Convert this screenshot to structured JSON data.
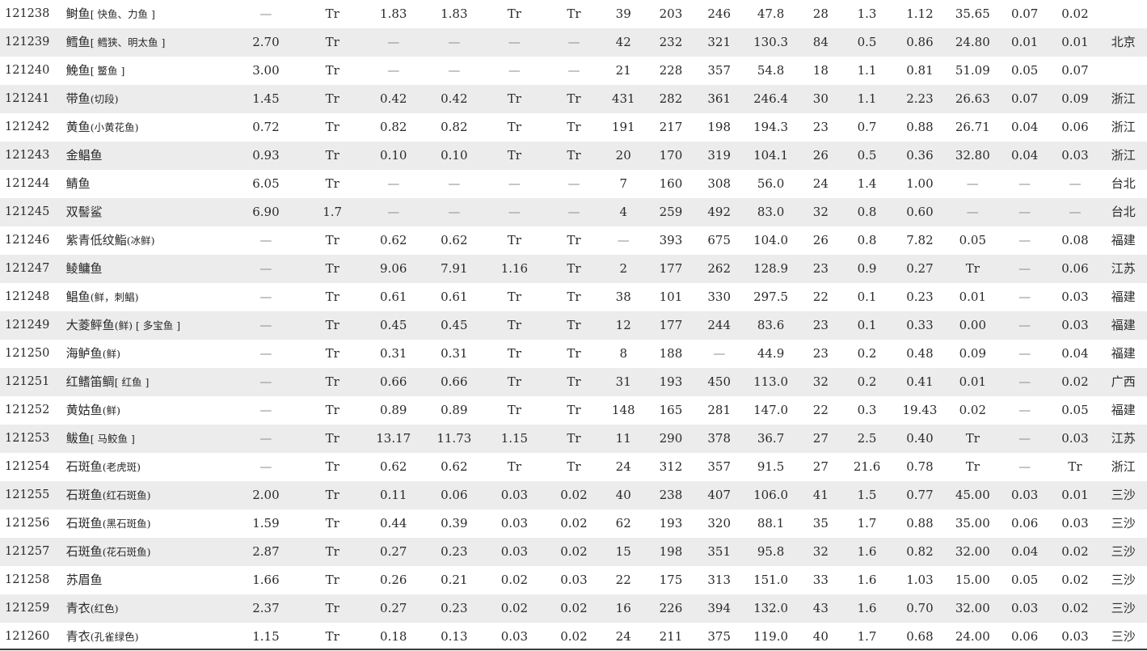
{
  "rows": [
    {
      "code": "121238",
      "name": "鲥鱼",
      "note": "[ 快鱼、力鱼 ]",
      "vals": [
        "—",
        "Tr",
        "1.83",
        "1.83",
        "Tr",
        "Tr",
        "39",
        "203",
        "246",
        "47.8",
        "28",
        "1.3",
        "1.12",
        "35.65",
        "0.07",
        "0.02"
      ],
      "loc": ""
    },
    {
      "code": "121239",
      "name": "鳕鱼",
      "note": "[ 鳕狭、明太鱼 ]",
      "vals": [
        "2.70",
        "Tr",
        "—",
        "—",
        "—",
        "—",
        "42",
        "232",
        "321",
        "130.3",
        "84",
        "0.5",
        "0.86",
        "24.80",
        "0.01",
        "0.01"
      ],
      "loc": "北京"
    },
    {
      "code": "121240",
      "name": "鮸鱼",
      "note": "[ 鳘鱼 ]",
      "vals": [
        "3.00",
        "Tr",
        "—",
        "—",
        "—",
        "—",
        "21",
        "228",
        "357",
        "54.8",
        "18",
        "1.1",
        "0.81",
        "51.09",
        "0.05",
        "0.07"
      ],
      "loc": ""
    },
    {
      "code": "121241",
      "name": "带鱼",
      "note": "(切段)",
      "vals": [
        "1.45",
        "Tr",
        "0.42",
        "0.42",
        "Tr",
        "Tr",
        "431",
        "282",
        "361",
        "246.4",
        "30",
        "1.1",
        "2.23",
        "26.63",
        "0.07",
        "0.09"
      ],
      "loc": "浙江"
    },
    {
      "code": "121242",
      "name": "黄鱼",
      "note": "(小黄花鱼)",
      "vals": [
        "0.72",
        "Tr",
        "0.82",
        "0.82",
        "Tr",
        "Tr",
        "191",
        "217",
        "198",
        "194.3",
        "23",
        "0.7",
        "0.88",
        "26.71",
        "0.04",
        "0.06"
      ],
      "loc": "浙江"
    },
    {
      "code": "121243",
      "name": "金鲳鱼",
      "note": "",
      "vals": [
        "0.93",
        "Tr",
        "0.10",
        "0.10",
        "Tr",
        "Tr",
        "20",
        "170",
        "319",
        "104.1",
        "26",
        "0.5",
        "0.36",
        "32.80",
        "0.04",
        "0.03"
      ],
      "loc": "浙江"
    },
    {
      "code": "121244",
      "name": "鲭鱼",
      "note": "",
      "vals": [
        "6.05",
        "Tr",
        "—",
        "—",
        "—",
        "—",
        "7",
        "160",
        "308",
        "56.0",
        "24",
        "1.4",
        "1.00",
        "—",
        "—",
        "—"
      ],
      "loc": "台北"
    },
    {
      "code": "121245",
      "name": "双髻鲨",
      "note": "",
      "vals": [
        "6.90",
        "1.7",
        "—",
        "—",
        "—",
        "—",
        "4",
        "259",
        "492",
        "83.0",
        "32",
        "0.8",
        "0.60",
        "—",
        "—",
        "—"
      ],
      "loc": "台北"
    },
    {
      "code": "121246",
      "name": "紫青低纹鮨",
      "note": "(冰鲜)",
      "vals": [
        "—",
        "Tr",
        "0.62",
        "0.62",
        "Tr",
        "Tr",
        "—",
        "393",
        "675",
        "104.0",
        "26",
        "0.8",
        "7.82",
        "0.05",
        "—",
        "0.08"
      ],
      "loc": "福建"
    },
    {
      "code": "121247",
      "name": "鲮鳙鱼",
      "note": "",
      "vals": [
        "—",
        "Tr",
        "9.06",
        "7.91",
        "1.16",
        "Tr",
        "2",
        "177",
        "262",
        "128.9",
        "23",
        "0.9",
        "0.27",
        "Tr",
        "—",
        "0.06"
      ],
      "loc": "江苏"
    },
    {
      "code": "121248",
      "name": "鲳鱼",
      "note": "(鲜，刺鲳)",
      "vals": [
        "—",
        "Tr",
        "0.61",
        "0.61",
        "Tr",
        "Tr",
        "38",
        "101",
        "330",
        "297.5",
        "22",
        "0.1",
        "0.23",
        "0.01",
        "—",
        "0.03"
      ],
      "loc": "福建"
    },
    {
      "code": "121249",
      "name": "大菱鲆鱼",
      "note": "(鲜) [ 多宝鱼 ]",
      "vals": [
        "—",
        "Tr",
        "0.45",
        "0.45",
        "Tr",
        "Tr",
        "12",
        "177",
        "244",
        "83.6",
        "23",
        "0.1",
        "0.33",
        "0.00",
        "—",
        "0.03"
      ],
      "loc": "福建"
    },
    {
      "code": "121250",
      "name": "海鲈鱼",
      "note": "(鲜)",
      "vals": [
        "—",
        "Tr",
        "0.31",
        "0.31",
        "Tr",
        "Tr",
        "8",
        "188",
        "—",
        "44.9",
        "23",
        "0.2",
        "0.48",
        "0.09",
        "—",
        "0.04"
      ],
      "loc": "福建"
    },
    {
      "code": "121251",
      "name": "红鳍笛鲷",
      "note": "[ 红鱼 ]",
      "vals": [
        "—",
        "Tr",
        "0.66",
        "0.66",
        "Tr",
        "Tr",
        "31",
        "193",
        "450",
        "113.0",
        "32",
        "0.2",
        "0.41",
        "0.01",
        "—",
        "0.02"
      ],
      "loc": "广西"
    },
    {
      "code": "121252",
      "name": "黄姑鱼",
      "note": "(鲜)",
      "vals": [
        "—",
        "Tr",
        "0.89",
        "0.89",
        "Tr",
        "Tr",
        "148",
        "165",
        "281",
        "147.0",
        "22",
        "0.3",
        "19.43",
        "0.02",
        "—",
        "0.05"
      ],
      "loc": "福建"
    },
    {
      "code": "121253",
      "name": "鲅鱼",
      "note": "[ 马鲛鱼 ]",
      "vals": [
        "—",
        "Tr",
        "13.17",
        "11.73",
        "1.15",
        "Tr",
        "11",
        "290",
        "378",
        "36.7",
        "27",
        "2.5",
        "0.40",
        "Tr",
        "—",
        "0.03"
      ],
      "loc": "江苏"
    },
    {
      "code": "121254",
      "name": "石斑鱼",
      "note": "(老虎斑)",
      "vals": [
        "—",
        "Tr",
        "0.62",
        "0.62",
        "Tr",
        "Tr",
        "24",
        "312",
        "357",
        "91.5",
        "27",
        "21.6",
        "0.78",
        "Tr",
        "—",
        "Tr"
      ],
      "loc": "浙江"
    },
    {
      "code": "121255",
      "name": "石斑鱼",
      "note": "(红石斑鱼)",
      "vals": [
        "2.00",
        "Tr",
        "0.11",
        "0.06",
        "0.03",
        "0.02",
        "40",
        "238",
        "407",
        "106.0",
        "41",
        "1.5",
        "0.77",
        "45.00",
        "0.03",
        "0.01"
      ],
      "loc": "三沙"
    },
    {
      "code": "121256",
      "name": "石斑鱼",
      "note": "(黑石斑鱼)",
      "vals": [
        "1.59",
        "Tr",
        "0.44",
        "0.39",
        "0.03",
        "0.02",
        "62",
        "193",
        "320",
        "88.1",
        "35",
        "1.7",
        "0.88",
        "35.00",
        "0.06",
        "0.03"
      ],
      "loc": "三沙"
    },
    {
      "code": "121257",
      "name": "石斑鱼",
      "note": "(花石斑鱼)",
      "vals": [
        "2.87",
        "Tr",
        "0.27",
        "0.23",
        "0.03",
        "0.02",
        "15",
        "198",
        "351",
        "95.8",
        "32",
        "1.6",
        "0.82",
        "32.00",
        "0.04",
        "0.02"
      ],
      "loc": "三沙"
    },
    {
      "code": "121258",
      "name": "苏眉鱼",
      "note": "",
      "vals": [
        "1.66",
        "Tr",
        "0.26",
        "0.21",
        "0.02",
        "0.03",
        "22",
        "175",
        "313",
        "151.0",
        "33",
        "1.6",
        "1.03",
        "15.00",
        "0.05",
        "0.02"
      ],
      "loc": "三沙"
    },
    {
      "code": "121259",
      "name": "青衣",
      "note": "(红色)",
      "vals": [
        "2.37",
        "Tr",
        "0.27",
        "0.23",
        "0.02",
        "0.02",
        "16",
        "226",
        "394",
        "132.0",
        "43",
        "1.6",
        "0.70",
        "32.00",
        "0.03",
        "0.02"
      ],
      "loc": "三沙"
    },
    {
      "code": "121260",
      "name": "青衣",
      "note": "(孔雀绿色)",
      "vals": [
        "1.15",
        "Tr",
        "0.18",
        "0.13",
        "0.03",
        "0.02",
        "24",
        "211",
        "375",
        "119.0",
        "40",
        "1.7",
        "0.68",
        "24.00",
        "0.06",
        "0.03"
      ],
      "loc": "三沙"
    }
  ]
}
